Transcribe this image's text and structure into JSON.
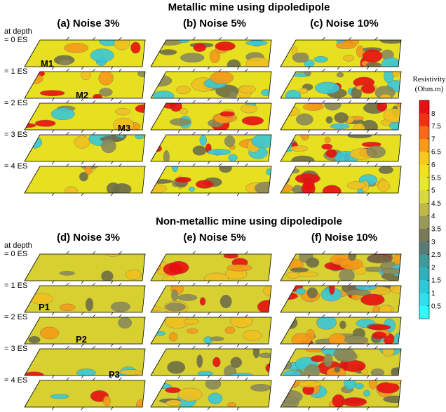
{
  "sections": [
    {
      "title": "Metallic mine using dipoledipole",
      "panels": [
        "(a) Noise 3%",
        "(b) Noise 5%",
        "(c) Noise 10%"
      ],
      "depth_header": "at depth",
      "depths": [
        "= 0 ES",
        "= 1 ES",
        "= 2 ES",
        "= 3 ES",
        "= 4 ES"
      ],
      "markers": [
        "M1",
        "M2",
        "M3"
      ]
    },
    {
      "title": "Non-metallic mine using dipoledipole",
      "panels": [
        "(d) Noise 3%",
        "(e) Noise 5%",
        "(f) Noise 10%"
      ],
      "depth_header": "at depth",
      "depths": [
        "= 0 ES",
        "= 1 ES",
        "= 2 ES",
        "= 3 ES",
        "= 4 ES"
      ],
      "markers": [
        "P1",
        "P2",
        "P3"
      ]
    }
  ],
  "colorbar": {
    "title": "Resistivity",
    "unit": "(Ohm.m)",
    "ticks": [
      8,
      7.5,
      7,
      6.5,
      6,
      5.5,
      5,
      4.5,
      4,
      3.5,
      3,
      2.5,
      2,
      1.5,
      1,
      0.5
    ]
  }
}
